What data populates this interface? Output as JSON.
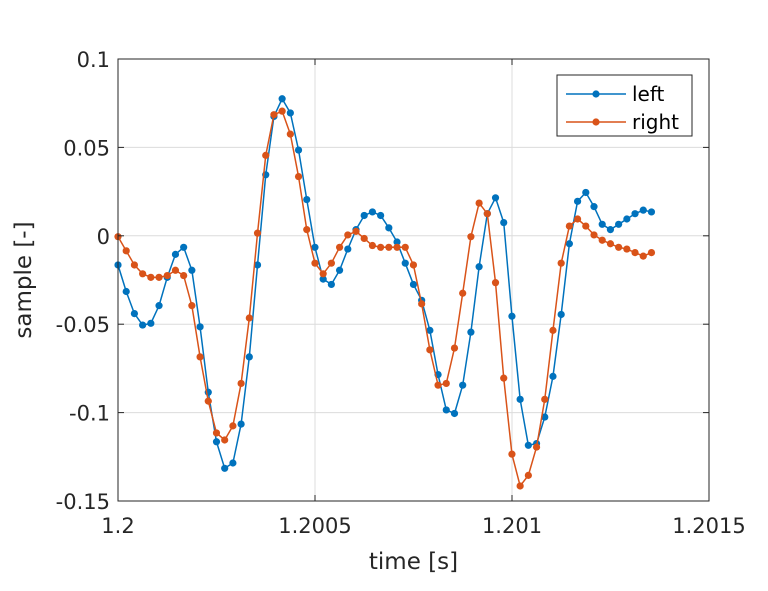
{
  "chart_data": {
    "type": "line",
    "title": "",
    "xlabel": "time [s]",
    "ylabel": "sample [-]",
    "xlim": [
      1.2,
      1.2015
    ],
    "ylim": [
      -0.15,
      0.1
    ],
    "x_ticks": [
      1.2,
      1.2005,
      1.201,
      1.2015
    ],
    "x_tick_labels": [
      "1.2",
      "1.2005",
      "1.201",
      "1.2015"
    ],
    "y_ticks": [
      0.1,
      0.05,
      0,
      -0.05,
      -0.1,
      -0.15
    ],
    "y_tick_labels": [
      "0.1",
      "0.05",
      "0",
      "-0.05",
      "-0.1",
      "-0.15"
    ],
    "grid": true,
    "legend_position": "top-right",
    "x_start": 1.2,
    "x_step": 2.083e-05,
    "series": [
      {
        "name": "left",
        "color": "#0072BD",
        "marker": "circle",
        "values": [
          -0.0165,
          -0.0315,
          -0.044,
          -0.0505,
          -0.0495,
          -0.0395,
          -0.0235,
          -0.0105,
          -0.0065,
          -0.0195,
          -0.0515,
          -0.0885,
          -0.1165,
          -0.1315,
          -0.1285,
          -0.1065,
          -0.0685,
          -0.0165,
          0.0345,
          0.0675,
          0.0775,
          0.0695,
          0.0485,
          0.0205,
          -0.0065,
          -0.0245,
          -0.0275,
          -0.0195,
          -0.0075,
          0.0035,
          0.0115,
          0.0135,
          0.0115,
          0.0045,
          -0.0035,
          -0.0155,
          -0.0275,
          -0.0365,
          -0.0535,
          -0.0785,
          -0.0985,
          -0.1005,
          -0.0845,
          -0.0545,
          -0.0175,
          0.0125,
          0.0215,
          0.0075,
          -0.0455,
          -0.0925,
          -0.1185,
          -0.1175,
          -0.1025,
          -0.0795,
          -0.0445,
          -0.0045,
          0.0195,
          0.0245,
          0.0165,
          0.0065,
          0.0035,
          0.0065,
          0.0095,
          0.0125,
          0.0145,
          0.0135
        ]
      },
      {
        "name": "right",
        "color": "#D95319",
        "marker": "circle",
        "values": [
          -0.0005,
          -0.0085,
          -0.0165,
          -0.0215,
          -0.0235,
          -0.0235,
          -0.0225,
          -0.0195,
          -0.0225,
          -0.0395,
          -0.0685,
          -0.0935,
          -0.1115,
          -0.1155,
          -0.1075,
          -0.0835,
          -0.0465,
          0.0015,
          0.0455,
          0.0685,
          0.0705,
          0.0575,
          0.0335,
          0.0035,
          -0.0155,
          -0.0215,
          -0.0155,
          -0.0065,
          0.0005,
          0.0025,
          -0.0015,
          -0.0055,
          -0.0065,
          -0.0065,
          -0.0065,
          -0.0065,
          -0.0165,
          -0.0385,
          -0.0645,
          -0.0845,
          -0.0835,
          -0.0635,
          -0.0325,
          -0.0005,
          0.0185,
          0.0125,
          -0.0265,
          -0.0805,
          -0.1235,
          -0.1415,
          -0.1355,
          -0.1195,
          -0.0925,
          -0.0535,
          -0.0155,
          0.0055,
          0.0095,
          0.0055,
          0.0005,
          -0.0025,
          -0.0045,
          -0.0065,
          -0.0075,
          -0.0095,
          -0.0115,
          -0.0095
        ]
      }
    ]
  }
}
